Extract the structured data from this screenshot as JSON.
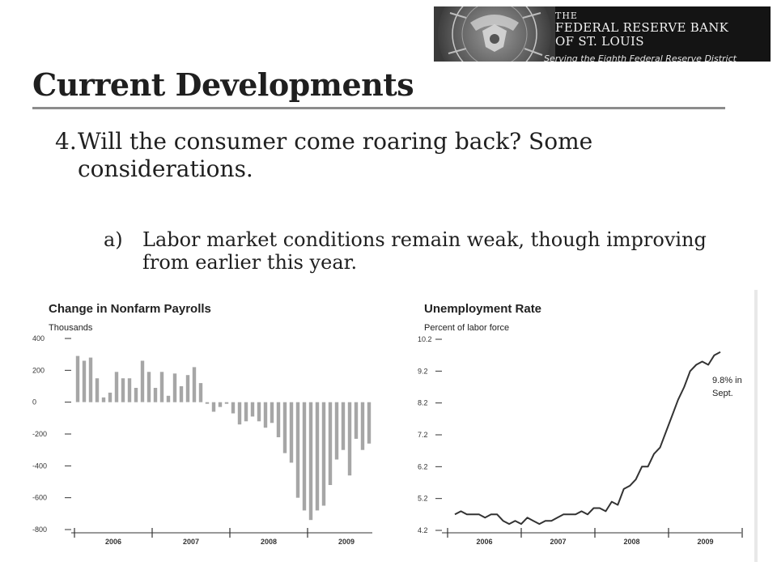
{
  "logo": {
    "line1": "THE",
    "line2": "FEDERAL RESERVE BANK",
    "line3": "OF ST. LOUIS",
    "tagline": "Serving the Eighth Federal Reserve District"
  },
  "slide": {
    "title": "Current Developments",
    "point_number": "4.",
    "point_text": "Will the consumer come roaring back? Some considerations.",
    "sub_label": "a)",
    "sub_text": "Labor market conditions remain weak, though improving from earlier this year."
  },
  "annotation": {
    "line1": "9.8% in",
    "line2": "Sept."
  },
  "chart_data": [
    {
      "type": "bar",
      "title": "Change in Nonfarm Payrolls",
      "ylabel": "Thousands",
      "ylim": [
        -800,
        400
      ],
      "yticks": [
        400,
        200,
        0,
        -200,
        -400,
        -600,
        -800
      ],
      "xticks": [
        "2006",
        "2007",
        "2008",
        "2009"
      ],
      "grid": false,
      "color": "#a6a6a6",
      "series": [
        {
          "values": [
            290,
            260,
            280,
            150,
            30,
            60,
            190,
            150,
            150,
            90,
            260,
            190,
            90,
            190,
            40,
            180,
            100,
            170,
            220,
            120,
            -10,
            -60,
            -30,
            -10,
            -70,
            -140,
            -120,
            -90,
            -120,
            -160,
            -130,
            -220,
            -320,
            -380,
            -600,
            -680,
            -740,
            -680,
            -650,
            -520,
            -360,
            -300,
            -460,
            -230,
            -300,
            -260
          ]
        }
      ]
    },
    {
      "type": "line",
      "title": "Unemployment Rate",
      "ylabel": "Percent of labor force",
      "ylim": [
        4.2,
        10.2
      ],
      "yticks": [
        10.2,
        9.2,
        8.2,
        7.2,
        6.2,
        5.2,
        4.2
      ],
      "xticks": [
        "2006",
        "2007",
        "2008",
        "2009"
      ],
      "grid": false,
      "color": "#333333",
      "series": [
        {
          "values": [
            4.7,
            4.8,
            4.7,
            4.7,
            4.7,
            4.6,
            4.7,
            4.7,
            4.5,
            4.4,
            4.5,
            4.4,
            4.6,
            4.5,
            4.4,
            4.5,
            4.5,
            4.6,
            4.7,
            4.7,
            4.7,
            4.8,
            4.7,
            4.9,
            4.9,
            4.8,
            5.1,
            5.0,
            5.5,
            5.6,
            5.8,
            6.2,
            6.2,
            6.6,
            6.8,
            7.3,
            7.8,
            8.3,
            8.7,
            9.2,
            9.4,
            9.5,
            9.4,
            9.7,
            9.8
          ]
        }
      ]
    }
  ]
}
